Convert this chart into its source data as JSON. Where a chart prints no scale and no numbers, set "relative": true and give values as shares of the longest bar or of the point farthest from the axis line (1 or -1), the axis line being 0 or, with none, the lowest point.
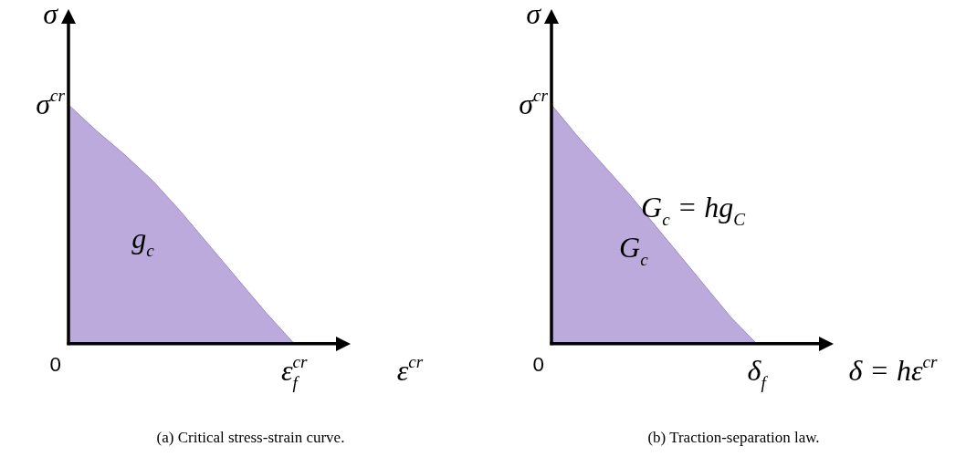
{
  "chart_data": [
    {
      "type": "area",
      "title": "(a) Critical stress-strain curve.",
      "xlabel": "ε$^{cr}$",
      "ylabel": "σ",
      "relative": true,
      "categories": [
        null,
        null,
        null,
        null,
        null,
        null,
        null,
        null,
        null,
        null,
        null
      ],
      "series": [
        {
          "color": "#bcaadd",
          "values": [
            1,
            0.89,
            0.79,
            0.68,
            0.55,
            0.41,
            0.27,
            0.13,
            0,
            null,
            null
          ]
        }
      ],
      "annotations": [
        "0",
        "σ$^{cr}$",
        "ε$_{f}$$^{cr}$",
        "g$_{c}$"
      ]
    },
    {
      "type": "area",
      "title": "(b) Traction-separation law.",
      "xlabel": "δ = hε$^{cr}$",
      "ylabel": "σ",
      "relative": true,
      "categories": [
        null,
        null,
        null,
        null,
        null,
        null,
        null,
        null,
        null,
        null,
        null,
        null
      ],
      "series": [
        {
          "color": "#bcaadd",
          "values": [
            1,
            0.87,
            0.75,
            0.63,
            0.5,
            0.37,
            0.24,
            0.11,
            0,
            null,
            null,
            null
          ]
        }
      ],
      "annotations": [
        "0",
        "σ$^{cr}$",
        "δ$_{f}$",
        "G$_{c}$",
        "G$_{c}$ = hg$_{C}$"
      ]
    }
  ]
}
